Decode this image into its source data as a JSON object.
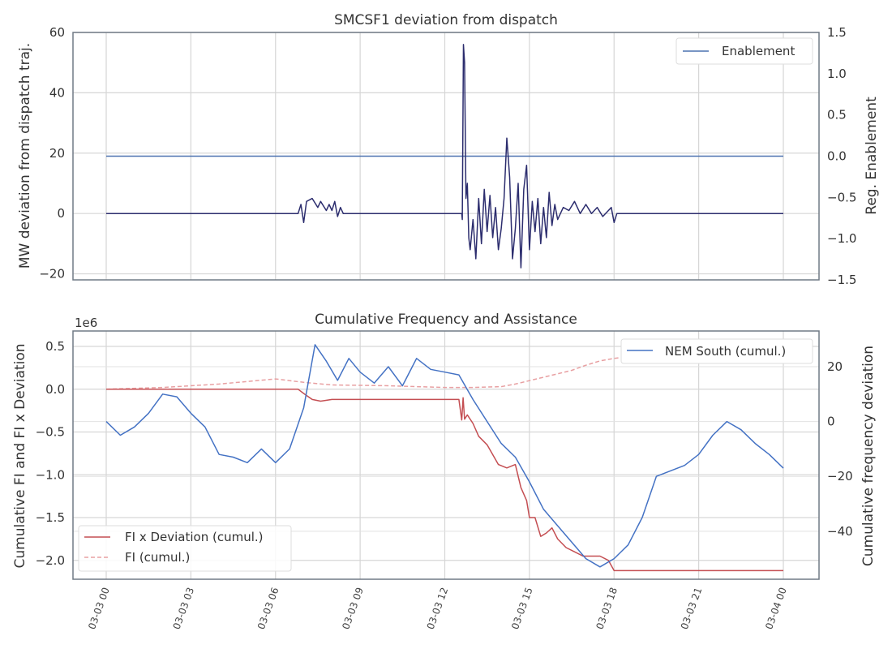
{
  "chart_data": [
    {
      "type": "line",
      "title": "SMCSF1 deviation from dispatch",
      "ylabel": "MW deviation from dispatch traj.",
      "ylabel_right": "Reg. Enablement",
      "ylim": [
        -22,
        60
      ],
      "yticks": [
        -20,
        0,
        20,
        40,
        60
      ],
      "ylim_right": [
        -1.5,
        1.5
      ],
      "yticks_right": [
        "−1.5",
        "−1.0",
        "−0.5",
        "0.0",
        "0.5",
        "1.0",
        "1.5"
      ],
      "yticks_right_values": [
        -1.5,
        -1.0,
        -0.5,
        0.0,
        0.5,
        1.0,
        1.5
      ],
      "grid": true,
      "legend_position": "top-right",
      "series": [
        {
          "name": "Enablement",
          "axis": "right",
          "color": "#4c72b0",
          "x": [
            0,
            24
          ],
          "y": [
            0.0,
            0.0
          ]
        },
        {
          "axis": "left",
          "color": "#2c2d6e",
          "x": [
            0,
            6.8,
            6.9,
            7.0,
            7.1,
            7.3,
            7.5,
            7.6,
            7.8,
            7.9,
            8.0,
            8.1,
            8.2,
            8.3,
            8.4,
            12.6,
            12.62,
            12.66,
            12.7,
            12.75,
            12.8,
            12.85,
            12.9,
            13.0,
            13.1,
            13.2,
            13.3,
            13.4,
            13.5,
            13.6,
            13.7,
            13.8,
            13.9,
            14.0,
            14.1,
            14.2,
            14.3,
            14.4,
            14.5,
            14.6,
            14.7,
            14.8,
            14.9,
            15.0,
            15.1,
            15.2,
            15.3,
            15.4,
            15.5,
            15.6,
            15.7,
            15.8,
            15.9,
            16.0,
            16.2,
            16.4,
            16.6,
            16.8,
            17.0,
            17.2,
            17.4,
            17.6,
            17.8,
            17.9,
            18.0,
            18.1,
            18.2,
            24
          ],
          "y": [
            0,
            0,
            3,
            -3,
            4,
            5,
            2,
            4,
            1,
            3,
            1,
            4,
            -1,
            2,
            0,
            0,
            -2,
            56,
            50,
            5,
            10,
            -8,
            -12,
            -2,
            -15,
            5,
            -10,
            8,
            -6,
            6,
            -8,
            2,
            -12,
            -5,
            5,
            25,
            12,
            -15,
            -5,
            10,
            -18,
            8,
            16,
            -12,
            4,
            -6,
            5,
            -10,
            2,
            -8,
            7,
            -4,
            3,
            -2,
            2,
            1,
            4,
            0,
            3,
            0,
            2,
            -1,
            1,
            2,
            -3,
            0,
            0,
            0
          ]
        }
      ]
    },
    {
      "type": "line",
      "title": "Cumulative Frequency and Assistance",
      "ylabel": "Cumulative FI and FI x Deviation",
      "ylabel_right": "Cumulative frequency deviation",
      "offset_text": "1e6",
      "ylim": [
        -2.22,
        0.68
      ],
      "yticks": [
        0.5,
        0.0,
        -0.5,
        -1.0,
        -1.5,
        -2.0
      ],
      "yticks_labels": [
        "0.5",
        "0.0",
        "−0.5",
        "−1.0",
        "−1.5",
        "−2.0"
      ],
      "ylim_right": [
        -57.5,
        33.0
      ],
      "yticks_right": [
        -40,
        -20,
        0,
        20
      ],
      "yticks_right_labels": [
        "−40",
        "−20",
        "0",
        "20"
      ],
      "grid": true,
      "series": [
        {
          "name": "NEM South (cumul.)",
          "axis": "right",
          "color": "#4472c4",
          "legend_position": "top-right",
          "x": [
            0,
            0.5,
            1.0,
            1.5,
            2.0,
            2.5,
            3.0,
            3.5,
            4.0,
            4.5,
            5.0,
            5.5,
            6.0,
            6.5,
            7.0,
            7.4,
            7.8,
            8.2,
            8.6,
            9.0,
            9.5,
            10.0,
            10.5,
            11.0,
            11.5,
            12.0,
            12.5,
            13.0,
            13.5,
            14.0,
            14.5,
            15.0,
            15.5,
            16.0,
            16.5,
            17.0,
            17.5,
            18.0,
            18.5,
            19.0,
            19.5,
            20.0,
            20.5,
            21.0,
            21.5,
            22.0,
            22.5,
            23.0,
            23.5,
            24.0
          ],
          "y": [
            0,
            -5,
            -2,
            3,
            10,
            9,
            3,
            -2,
            -12,
            -13,
            -15,
            -10,
            -15,
            -10,
            5,
            28,
            22,
            15,
            23,
            18,
            14,
            20,
            13,
            23,
            19,
            18,
            17,
            8,
            0,
            -8,
            -13,
            -22,
            -32,
            -38,
            -44,
            -50,
            -53,
            -50,
            -45,
            -35,
            -20,
            -18,
            -16,
            -12,
            -5,
            0,
            -3,
            -8,
            -12,
            -17
          ]
        },
        {
          "name": "FI x Deviation (cumul.)",
          "axis": "left",
          "color": "#c44e52",
          "legend_position": "bottom-left",
          "x": [
            0,
            6.8,
            7.0,
            7.3,
            7.6,
            8.0,
            8.5,
            12.5,
            12.6,
            12.65,
            12.7,
            12.8,
            13.0,
            13.2,
            13.5,
            13.9,
            14.2,
            14.5,
            14.7,
            14.9,
            15.0,
            15.2,
            15.4,
            15.6,
            15.8,
            16.0,
            16.3,
            16.6,
            16.9,
            17.2,
            17.5,
            17.8,
            18.0,
            18.3,
            24.0
          ],
          "y": [
            0.0,
            0.0,
            -0.05,
            -0.12,
            -0.14,
            -0.12,
            -0.12,
            -0.12,
            -0.36,
            -0.1,
            -0.35,
            -0.3,
            -0.4,
            -0.55,
            -0.65,
            -0.88,
            -0.92,
            -0.88,
            -1.15,
            -1.3,
            -1.5,
            -1.5,
            -1.72,
            -1.68,
            -1.62,
            -1.75,
            -1.85,
            -1.9,
            -1.95,
            -1.95,
            -1.95,
            -2.0,
            -2.12,
            -2.12,
            -2.12
          ]
        },
        {
          "name": "FI (cumul.)",
          "axis": "left",
          "color": "#e8a0a2",
          "dashed": true,
          "legend_position": "bottom-left",
          "x": [
            0,
            2.0,
            4.0,
            6.0,
            7.0,
            8.0,
            10.0,
            12.0,
            13.0,
            14.0,
            14.5,
            15.0,
            15.5,
            16.0,
            16.5,
            17.0,
            17.5,
            18.0,
            18.5,
            19.0,
            19.5,
            20.0,
            24.0
          ],
          "y": [
            0.0,
            0.02,
            0.06,
            0.12,
            0.08,
            0.05,
            0.04,
            0.02,
            0.02,
            0.03,
            0.06,
            0.1,
            0.14,
            0.18,
            0.22,
            0.28,
            0.33,
            0.36,
            0.38,
            0.39,
            0.4,
            0.4,
            0.4
          ]
        }
      ],
      "x_tick_labels": [
        "03-03 00",
        "03-03 03",
        "03-03 06",
        "03-03 09",
        "03-03 12",
        "03-03 15",
        "03-03 18",
        "03-03 21",
        "03-04 00"
      ],
      "x_tick_hours": [
        0,
        3,
        6,
        9,
        12,
        15,
        18,
        21,
        24
      ]
    }
  ]
}
